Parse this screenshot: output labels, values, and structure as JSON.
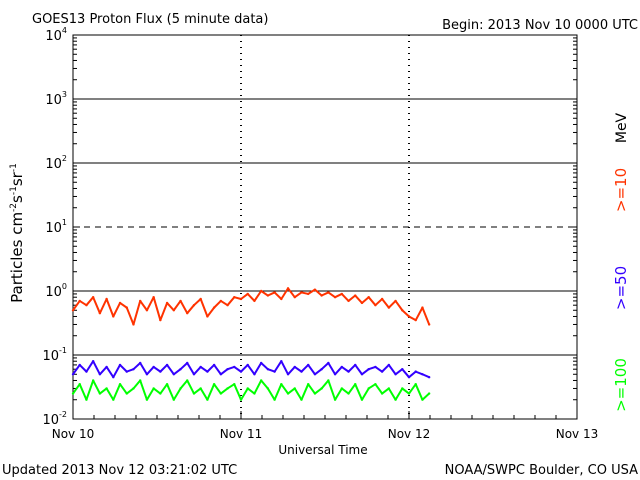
{
  "chart_data": {
    "type": "line",
    "title": "GOES13 Proton Flux (5 minute data)",
    "begin_label": "Begin: 2013 Nov 10 0000 UTC",
    "xlabel": "Universal Time",
    "ylabel_main": "Particles cm",
    "ylabel_exp1": "-2",
    "ylabel_s": "s",
    "ylabel_exp2": "-1",
    "ylabel_sr": "sr",
    "ylabel_exp3": "-1",
    "y_scale": "log",
    "ylim": [
      0.01,
      10000
    ],
    "xlim_days": [
      0,
      3
    ],
    "x_ticks": [
      {
        "day": 0,
        "label": "Nov 10"
      },
      {
        "day": 1,
        "label": "Nov 11"
      },
      {
        "day": 2,
        "label": "Nov 12"
      },
      {
        "day": 3,
        "label": "Nov 13"
      }
    ],
    "y_ticks": [
      {
        "value": 0.01,
        "base": "10",
        "exp": "-2"
      },
      {
        "value": 0.1,
        "base": "10",
        "exp": "-1"
      },
      {
        "value": 1,
        "base": "10",
        "exp": "0"
      },
      {
        "value": 10,
        "base": "10",
        "exp": "1"
      },
      {
        "value": 100,
        "base": "10",
        "exp": "2"
      },
      {
        "value": 1000,
        "base": "10",
        "exp": "3"
      },
      {
        "value": 10000,
        "base": "10",
        "exp": "4"
      }
    ],
    "reference_lines": [
      {
        "value": 1,
        "style": "solid"
      },
      {
        "value": 10,
        "style": "dashed"
      },
      {
        "value": 100,
        "style": "solid"
      },
      {
        "value": 1000,
        "style": "solid"
      },
      {
        "value": 0.1,
        "style": "solid"
      }
    ],
    "legend_unit": "MeV",
    "series": [
      {
        "name": ">=10",
        "color": "#ff3300",
        "x_days": [
          0.0,
          0.04,
          0.08,
          0.12,
          0.16,
          0.2,
          0.24,
          0.28,
          0.32,
          0.36,
          0.4,
          0.44,
          0.48,
          0.52,
          0.56,
          0.6,
          0.64,
          0.68,
          0.72,
          0.76,
          0.8,
          0.84,
          0.88,
          0.92,
          0.96,
          1.0,
          1.04,
          1.08,
          1.12,
          1.16,
          1.2,
          1.24,
          1.28,
          1.32,
          1.36,
          1.4,
          1.44,
          1.48,
          1.52,
          1.56,
          1.6,
          1.64,
          1.68,
          1.72,
          1.76,
          1.8,
          1.84,
          1.88,
          1.92,
          1.96,
          2.0,
          2.04,
          2.08,
          2.12
        ],
        "values": [
          0.5,
          0.7,
          0.6,
          0.8,
          0.45,
          0.75,
          0.4,
          0.65,
          0.55,
          0.3,
          0.7,
          0.5,
          0.8,
          0.35,
          0.65,
          0.5,
          0.7,
          0.45,
          0.6,
          0.75,
          0.4,
          0.55,
          0.7,
          0.6,
          0.8,
          0.75,
          0.9,
          0.7,
          1.0,
          0.85,
          0.95,
          0.75,
          1.1,
          0.8,
          0.95,
          0.9,
          1.05,
          0.85,
          0.95,
          0.8,
          0.9,
          0.7,
          0.85,
          0.65,
          0.8,
          0.6,
          0.75,
          0.55,
          0.7,
          0.5,
          0.4,
          0.35,
          0.55,
          0.3
        ]
      },
      {
        "name": ">=50",
        "color": "#3300ff",
        "x_days": [
          0.0,
          0.04,
          0.08,
          0.12,
          0.16,
          0.2,
          0.24,
          0.28,
          0.32,
          0.36,
          0.4,
          0.44,
          0.48,
          0.52,
          0.56,
          0.6,
          0.64,
          0.68,
          0.72,
          0.76,
          0.8,
          0.84,
          0.88,
          0.92,
          0.96,
          1.0,
          1.04,
          1.08,
          1.12,
          1.16,
          1.2,
          1.24,
          1.28,
          1.32,
          1.36,
          1.4,
          1.44,
          1.48,
          1.52,
          1.56,
          1.6,
          1.64,
          1.68,
          1.72,
          1.76,
          1.8,
          1.84,
          1.88,
          1.92,
          1.96,
          2.0,
          2.04,
          2.08,
          2.12
        ],
        "values": [
          0.05,
          0.07,
          0.055,
          0.08,
          0.05,
          0.065,
          0.045,
          0.07,
          0.055,
          0.06,
          0.075,
          0.05,
          0.065,
          0.055,
          0.07,
          0.05,
          0.06,
          0.075,
          0.05,
          0.065,
          0.055,
          0.07,
          0.05,
          0.06,
          0.065,
          0.055,
          0.07,
          0.05,
          0.075,
          0.06,
          0.055,
          0.08,
          0.05,
          0.065,
          0.055,
          0.07,
          0.05,
          0.06,
          0.075,
          0.05,
          0.065,
          0.055,
          0.07,
          0.05,
          0.06,
          0.065,
          0.055,
          0.07,
          0.05,
          0.06,
          0.045,
          0.055,
          0.05,
          0.045
        ]
      },
      {
        "name": ">=100",
        "color": "#00ff00",
        "x_days": [
          0.0,
          0.04,
          0.08,
          0.12,
          0.16,
          0.2,
          0.24,
          0.28,
          0.32,
          0.36,
          0.4,
          0.44,
          0.48,
          0.52,
          0.56,
          0.6,
          0.64,
          0.68,
          0.72,
          0.76,
          0.8,
          0.84,
          0.88,
          0.92,
          0.96,
          1.0,
          1.04,
          1.08,
          1.12,
          1.16,
          1.2,
          1.24,
          1.28,
          1.32,
          1.36,
          1.4,
          1.44,
          1.48,
          1.52,
          1.56,
          1.6,
          1.64,
          1.68,
          1.72,
          1.76,
          1.8,
          1.84,
          1.88,
          1.92,
          1.96,
          2.0,
          2.04,
          2.08,
          2.12
        ],
        "values": [
          0.025,
          0.035,
          0.02,
          0.04,
          0.025,
          0.03,
          0.02,
          0.035,
          0.025,
          0.03,
          0.04,
          0.02,
          0.03,
          0.025,
          0.035,
          0.02,
          0.03,
          0.04,
          0.025,
          0.03,
          0.02,
          0.035,
          0.025,
          0.03,
          0.035,
          0.02,
          0.03,
          0.025,
          0.04,
          0.03,
          0.02,
          0.035,
          0.025,
          0.03,
          0.02,
          0.035,
          0.025,
          0.03,
          0.04,
          0.02,
          0.03,
          0.025,
          0.035,
          0.02,
          0.03,
          0.035,
          0.025,
          0.03,
          0.02,
          0.03,
          0.025,
          0.035,
          0.02,
          0.025
        ]
      }
    ],
    "grid": false,
    "legend_position": "right"
  },
  "footer": {
    "updated": "Updated 2013 Nov 12 03:21:02 UTC",
    "credit": "NOAA/SWPC Boulder, CO USA"
  }
}
